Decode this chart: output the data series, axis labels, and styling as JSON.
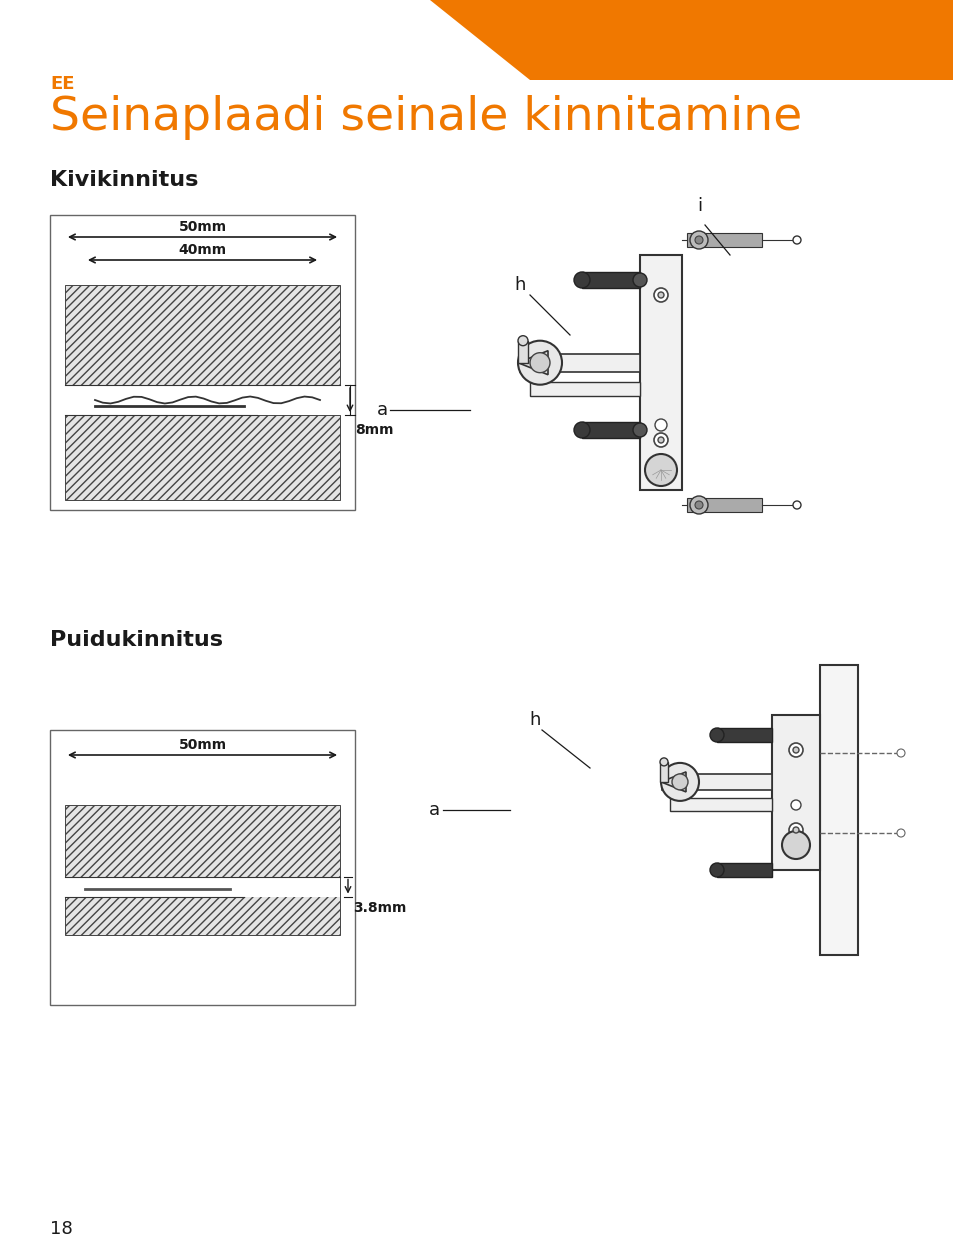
{
  "page_bg": "#ffffff",
  "orange_color": "#f07800",
  "dark_color": "#1a1a1a",
  "gray_color": "#888888",
  "light_gray": "#cccccc",
  "ee_label": "EE",
  "title": "Seinaplaadi seinale kinnitamine",
  "section1": "Kivikinnitus",
  "section2": "Puidukinnitus",
  "page_number": "18",
  "dim1_50mm": "50mm",
  "dim1_40mm": "40mm",
  "dim1_8mm": "8mm",
  "dim2_50mm": "50mm",
  "dim2_38mm": "3.8mm",
  "label_h1": "h",
  "label_i": "i",
  "label_a1": "a",
  "label_h2": "h",
  "label_a2": "a"
}
